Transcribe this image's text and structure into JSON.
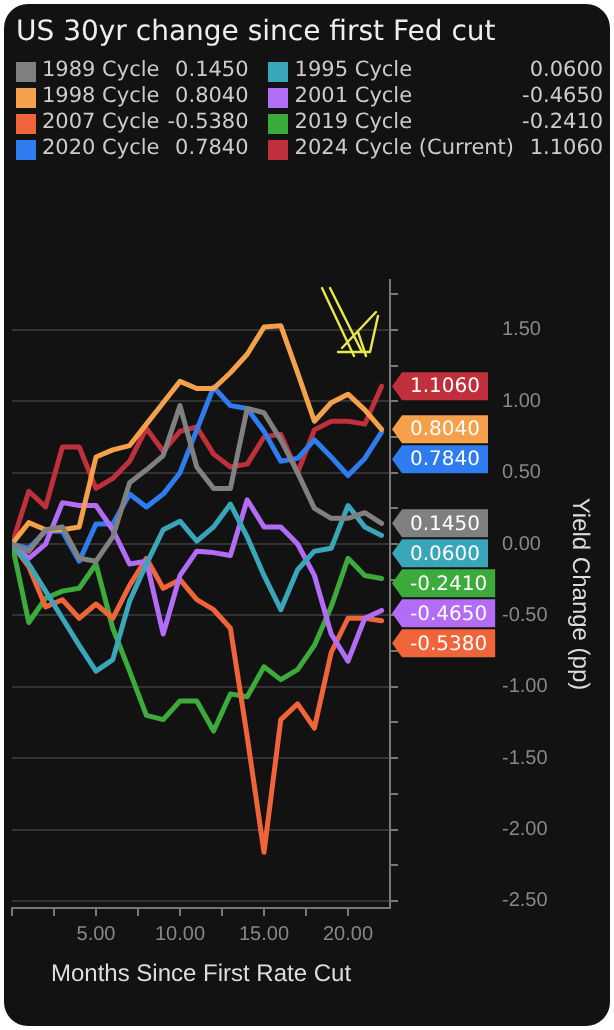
{
  "chart_data": {
    "type": "line",
    "title": "US 30yr change since first Fed cut",
    "xlabel": "Months Since First Rate Cut",
    "ylabel": "Yield Change (pp)",
    "x": [
      0,
      1,
      2,
      3,
      4,
      5,
      6,
      7,
      8,
      9,
      10,
      11,
      12,
      13,
      14,
      15,
      16,
      17,
      18,
      19,
      20,
      21,
      22
    ],
    "xlim": [
      0,
      22.5
    ],
    "xticks": [
      {
        "value": 0,
        "label": null
      },
      {
        "value": 2.5,
        "label": null
      },
      {
        "value": 5,
        "label": "5.00"
      },
      {
        "value": 7.5,
        "label": null
      },
      {
        "value": 10,
        "label": "10.00"
      },
      {
        "value": 12.5,
        "label": null
      },
      {
        "value": 15,
        "label": "15.00"
      },
      {
        "value": 17.5,
        "label": null
      },
      {
        "value": 20,
        "label": "20.00"
      }
    ],
    "ylim": [
      -2.55,
      1.85
    ],
    "yticks": [
      {
        "value": -2.5,
        "label": "-2.50"
      },
      {
        "value": -2.25,
        "label": null
      },
      {
        "value": -2,
        "label": "-2.00"
      },
      {
        "value": -1.75,
        "label": null
      },
      {
        "value": -1.5,
        "label": "-1.50"
      },
      {
        "value": -1.25,
        "label": null
      },
      {
        "value": -1,
        "label": "-1.00"
      },
      {
        "value": -0.75,
        "label": null
      },
      {
        "value": -0.5,
        "label": "-0.50"
      },
      {
        "value": -0.25,
        "label": null
      },
      {
        "value": 0,
        "label": "0.00"
      },
      {
        "value": 0.25,
        "label": null
      },
      {
        "value": 0.5,
        "label": "0.50"
      },
      {
        "value": 0.75,
        "label": null
      },
      {
        "value": 1,
        "label": "1.00"
      },
      {
        "value": 1.25,
        "label": null
      },
      {
        "value": 1.5,
        "label": "1.50"
      },
      {
        "value": 1.75,
        "label": null
      }
    ],
    "grid": "y",
    "legend": "top",
    "marker": "none",
    "line_style": "solid",
    "series": [
      {
        "name": "1989 Cycle",
        "color": "#808080",
        "values": [
          0,
          -0.05,
          0.1,
          0.12,
          -0.1,
          -0.12,
          0.05,
          0.43,
          0.52,
          0.62,
          0.97,
          0.54,
          0.39,
          0.39,
          0.95,
          0.92,
          0.73,
          0.5,
          0.25,
          0.18,
          0.18,
          0.22,
          0.145
        ],
        "value_labels": [
          null,
          null,
          null,
          null,
          null,
          null,
          null,
          null,
          null,
          null,
          null,
          null,
          null,
          null,
          null,
          null,
          null,
          null,
          null,
          null,
          null,
          null,
          "0.1450"
        ]
      },
      {
        "name": "1995 Cycle",
        "color": "#3aa6b9",
        "values": [
          0,
          -0.14,
          -0.33,
          -0.52,
          -0.71,
          -0.89,
          -0.81,
          -0.4,
          -0.14,
          0.1,
          0.16,
          0.02,
          0.12,
          0.28,
          0.05,
          -0.22,
          -0.46,
          -0.18,
          -0.05,
          -0.03,
          0.27,
          0.12,
          0.06
        ],
        "value_labels": [
          null,
          null,
          null,
          null,
          null,
          null,
          null,
          null,
          null,
          null,
          null,
          null,
          null,
          null,
          null,
          null,
          null,
          null,
          null,
          null,
          null,
          null,
          "0.0600"
        ]
      },
      {
        "name": "1998 Cycle",
        "color": "#f5a04a",
        "values": [
          0,
          0.15,
          0.1,
          0.1,
          0.12,
          0.61,
          0.66,
          0.69,
          0.84,
          0.99,
          1.14,
          1.09,
          1.09,
          1.2,
          1.33,
          1.52,
          1.53,
          1.2,
          0.86,
          0.99,
          1.05,
          0.94,
          0.804
        ],
        "value_labels": [
          null,
          null,
          null,
          null,
          null,
          null,
          null,
          null,
          null,
          null,
          null,
          null,
          null,
          null,
          null,
          null,
          null,
          null,
          null,
          null,
          null,
          null,
          "0.8040"
        ]
      },
      {
        "name": "2001 Cycle",
        "color": "#b36cf5",
        "values": [
          0,
          -0.1,
          0,
          0.29,
          0.27,
          0.27,
          0.1,
          -0.14,
          -0.12,
          -0.63,
          -0.22,
          -0.05,
          -0.06,
          -0.08,
          0.31,
          0.12,
          0.12,
          0,
          -0.22,
          -0.63,
          -0.82,
          -0.52,
          -0.465
        ],
        "value_labels": [
          null,
          null,
          null,
          null,
          null,
          null,
          null,
          null,
          null,
          null,
          null,
          null,
          null,
          null,
          null,
          null,
          null,
          null,
          null,
          null,
          null,
          null,
          "-0.4650"
        ]
      },
      {
        "name": "2007 Cycle",
        "color": "#f0643a",
        "values": [
          0,
          -0.16,
          -0.44,
          -0.39,
          -0.52,
          -0.42,
          -0.52,
          -0.29,
          -0.1,
          -0.31,
          -0.25,
          -0.39,
          -0.46,
          -0.59,
          -1.35,
          -2.16,
          -1.23,
          -1.12,
          -1.29,
          -0.76,
          -0.52,
          -0.52,
          -0.538
        ],
        "value_labels": [
          null,
          null,
          null,
          null,
          null,
          null,
          null,
          null,
          null,
          null,
          null,
          null,
          null,
          null,
          null,
          null,
          null,
          null,
          null,
          null,
          null,
          null,
          "-0.5380"
        ]
      },
      {
        "name": "2019 Cycle",
        "color": "#3cab3c",
        "values": [
          0,
          -0.55,
          -0.38,
          -0.33,
          -0.31,
          -0.14,
          -0.59,
          -0.89,
          -1.2,
          -1.23,
          -1.1,
          -1.1,
          -1.31,
          -1.05,
          -1.07,
          -0.86,
          -0.95,
          -0.88,
          -0.71,
          -0.44,
          -0.1,
          -0.22,
          -0.241
        ],
        "value_labels": [
          null,
          null,
          null,
          null,
          null,
          null,
          null,
          null,
          null,
          null,
          null,
          null,
          null,
          null,
          null,
          null,
          null,
          null,
          null,
          null,
          null,
          null,
          "-0.2410"
        ]
      },
      {
        "name": "2020 Cycle",
        "color": "#2f7bf0",
        "values": [
          0,
          -0.03,
          0.09,
          0.09,
          -0.12,
          0.14,
          0.14,
          0.35,
          0.26,
          0.35,
          0.5,
          0.8,
          1.1,
          0.97,
          0.95,
          0.79,
          0.58,
          0.6,
          0.73,
          0.61,
          0.48,
          0.6,
          0.784
        ],
        "value_labels": [
          null,
          null,
          null,
          null,
          null,
          null,
          null,
          null,
          null,
          null,
          null,
          null,
          null,
          null,
          null,
          null,
          null,
          null,
          null,
          null,
          null,
          null,
          "0.7840"
        ]
      },
      {
        "name": "2024 Cycle (Current)",
        "color": "#c0303c",
        "values": [
          0,
          0.37,
          0.26,
          0.68,
          0.68,
          0.39,
          0.46,
          0.58,
          0.81,
          0.65,
          0.79,
          0.82,
          0.63,
          0.54,
          0.56,
          0.75,
          0.77,
          0.5,
          0.8,
          0.86,
          0.86,
          0.84,
          1.106
        ],
        "value_labels": [
          null,
          null,
          null,
          null,
          null,
          null,
          null,
          null,
          null,
          null,
          null,
          null,
          null,
          null,
          null,
          null,
          null,
          null,
          null,
          null,
          null,
          null,
          "1.1060"
        ]
      }
    ]
  }
}
